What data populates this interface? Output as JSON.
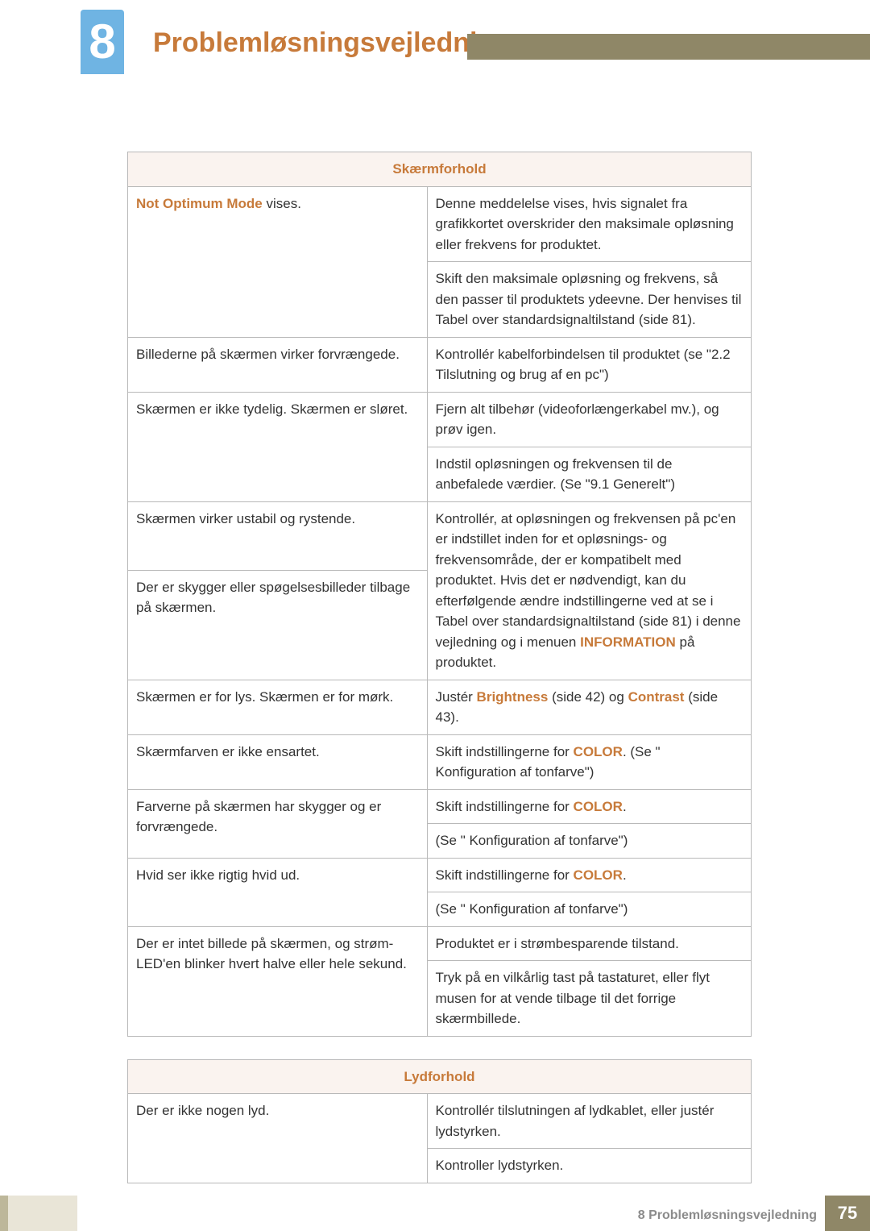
{
  "colors": {
    "accent": "#c77a3a",
    "tab_bg": "#6fb4e3",
    "olive": "#8f8767",
    "header_cell": "#faf3ef",
    "border": "#b9b9b9"
  },
  "header": {
    "chapter_number": "8",
    "title": "Problemløsningsvejledning",
    "title_color": "#c77a3a"
  },
  "tables": [
    {
      "id": "skaerm",
      "header": "Skærmforhold",
      "rows": [
        {
          "left": {
            "segments": [
              {
                "text": "Not Optimum Mode",
                "style": "accent"
              },
              {
                "text": " vises."
              }
            ]
          },
          "right_cells": [
            {
              "segments": [
                {
                  "text": "Denne meddelelse vises, hvis signalet fra grafikkortet overskrider den maksimale opløsning eller frekvens for produktet."
                }
              ]
            },
            {
              "segments": [
                {
                  "text": "Skift den maksimale opløsning og frekvens, så den passer til produktets ydeevne. Der henvises til Tabel over standardsignaltilstand (side 81)."
                }
              ]
            }
          ]
        },
        {
          "left": {
            "segments": [
              {
                "text": "Billederne på skærmen virker forvrængede."
              }
            ]
          },
          "right_cells": [
            {
              "segments": [
                {
                  "text": "Kontrollér kabelforbindelsen til produktet (se \"2.2 Tilslutning og brug af en pc\")"
                }
              ]
            }
          ]
        },
        {
          "left": {
            "segments": [
              {
                "text": "Skærmen er ikke tydelig. Skærmen er sløret."
              }
            ]
          },
          "right_cells": [
            {
              "segments": [
                {
                  "text": "Fjern alt tilbehør (videoforlængerkabel mv.), og prøv igen."
                }
              ]
            },
            {
              "segments": [
                {
                  "text": "Indstil opløsningen og frekvensen til de anbefalede værdier. (Se \"9.1 Generelt\")"
                }
              ]
            }
          ]
        },
        {
          "left_group": [
            {
              "segments": [
                {
                  "text": "Skærmen virker ustabil og rystende."
                }
              ]
            },
            {
              "segments": [
                {
                  "text": "Der er skygger eller spøgelsesbilleder tilbage på skærmen."
                }
              ]
            }
          ],
          "right_cells": [
            {
              "segments": [
                {
                  "text": "Kontrollér, at opløsningen og frekvensen på pc'en er indstillet inden for et opløsnings- og frekvensområde, der er kompatibelt med produktet. Hvis det er nødvendigt, kan du efterfølgende ændre indstillingerne ved at se i Tabel over standardsignaltilstand (side 81) i denne vejledning og i menuen "
                },
                {
                  "text": "INFORMATION",
                  "style": "bold_accent"
                },
                {
                  "text": " på produktet."
                }
              ]
            }
          ]
        },
        {
          "left": {
            "segments": [
              {
                "text": "Skærmen er for lys. Skærmen er for mørk."
              }
            ]
          },
          "right_cells": [
            {
              "segments": [
                {
                  "text": "Justér "
                },
                {
                  "text": "Brightness",
                  "style": "bold_accent"
                },
                {
                  "text": " (side 42) og "
                },
                {
                  "text": "Contrast",
                  "style": "bold_accent"
                },
                {
                  "text": " (side 43)."
                }
              ]
            }
          ]
        },
        {
          "left": {
            "segments": [
              {
                "text": "Skærmfarven er ikke ensartet."
              }
            ]
          },
          "right_cells": [
            {
              "segments": [
                {
                  "text": "Skift indstillingerne for "
                },
                {
                  "text": "COLOR",
                  "style": "bold_accent"
                },
                {
                  "text": ". (Se \" Konfiguration af tonfarve\")"
                }
              ]
            }
          ]
        },
        {
          "left": {
            "segments": [
              {
                "text": "Farverne på skærmen har skygger og er forvrængede."
              }
            ]
          },
          "right_cells": [
            {
              "segments": [
                {
                  "text": "Skift indstillingerne for "
                },
                {
                  "text": "COLOR",
                  "style": "bold_accent"
                },
                {
                  "text": "."
                }
              ]
            },
            {
              "segments": [
                {
                  "text": "(Se \" Konfiguration af tonfarve\")"
                }
              ]
            }
          ]
        },
        {
          "left": {
            "segments": [
              {
                "text": "Hvid ser ikke rigtig hvid ud."
              }
            ]
          },
          "right_cells": [
            {
              "segments": [
                {
                  "text": "Skift indstillingerne for "
                },
                {
                  "text": "COLOR",
                  "style": "bold_accent"
                },
                {
                  "text": "."
                }
              ]
            },
            {
              "segments": [
                {
                  "text": "(Se \" Konfiguration af tonfarve\")"
                }
              ]
            }
          ]
        },
        {
          "left": {
            "segments": [
              {
                "text": "Der er intet billede på skærmen, og strøm-LED'en blinker hvert halve eller hele sekund."
              }
            ]
          },
          "right_cells": [
            {
              "segments": [
                {
                  "text": "Produktet er i strømbesparende tilstand."
                }
              ]
            },
            {
              "segments": [
                {
                  "text": "Tryk på en vilkårlig tast på tastaturet, eller flyt musen for at vende tilbage til det forrige skærmbillede."
                }
              ]
            }
          ]
        }
      ]
    },
    {
      "id": "lyd",
      "header": "Lydforhold",
      "rows": [
        {
          "left": {
            "segments": [
              {
                "text": "Der er ikke nogen lyd."
              }
            ]
          },
          "right_cells": [
            {
              "segments": [
                {
                  "text": "Kontrollér tilslutningen af lydkablet, eller justér lydstyrken."
                }
              ]
            },
            {
              "segments": [
                {
                  "text": "Kontroller lydstyrken."
                }
              ]
            }
          ]
        }
      ]
    }
  ],
  "footer": {
    "crumb_prefix": "8 ",
    "crumb_title": "Problemløsningsvejledning",
    "page_number": "75"
  }
}
